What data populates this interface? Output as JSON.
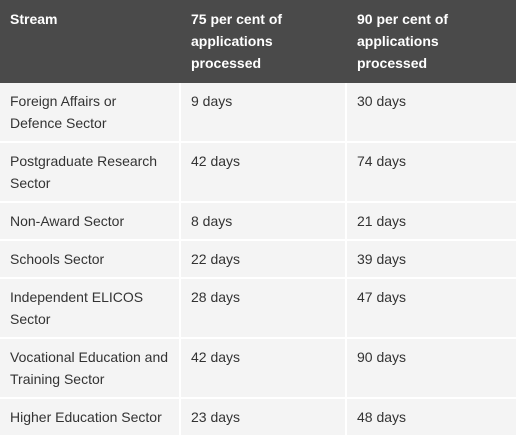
{
  "table": {
    "header": [
      "Stream",
      "75 per cent of applications processed",
      "90 per cent of applications processed"
    ],
    "rows": [
      [
        "Foreign Affairs or Defence Sector",
        "9 days",
        "30 days"
      ],
      [
        "Postgraduate Research Sector",
        "42 days",
        "74 days"
      ],
      [
        "Non-Award Sector",
        "8 days",
        "21 days"
      ],
      [
        "Schools Sector",
        "22 days",
        "39 days"
      ],
      [
        "Independent ELICOS Sector",
        "28 days",
        "47 days"
      ],
      [
        "Vocational Education and Training Sector",
        "42 days",
        "90 days"
      ],
      [
        "Higher Education Sector",
        "23 days",
        "48 days"
      ]
    ]
  }
}
